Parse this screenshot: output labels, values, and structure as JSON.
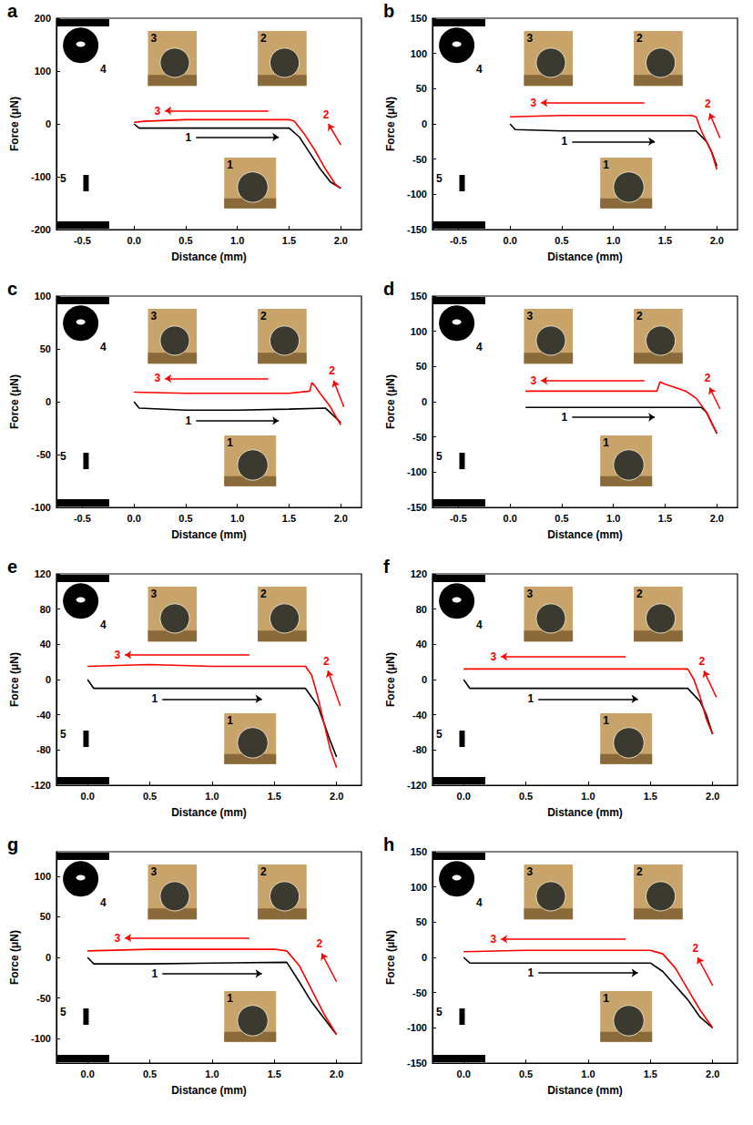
{
  "chart_data": [
    {
      "panel": "a",
      "type": "line",
      "x_label": "Distance (mm)",
      "y_label": "Force (μN)",
      "grid": false,
      "xlim": [
        -0.75,
        2.2
      ],
      "xticks": [
        -0.5,
        {
          "value": 0,
          "label": "0.0"
        },
        0.5,
        {
          "value": 1,
          "label": "1.0"
        },
        1.5,
        {
          "value": 2,
          "label": "2.0"
        }
      ],
      "ylim": [
        -200,
        200
      ],
      "yticks": [
        -200,
        -100,
        0,
        100,
        200
      ],
      "series": [
        {
          "color": "#000000",
          "x": [
            0,
            0.05,
            0.5,
            1.0,
            1.5,
            1.6,
            1.7,
            1.8,
            1.9,
            2.0
          ],
          "values": [
            0,
            -8,
            -8,
            -8,
            -8,
            -25,
            -55,
            -85,
            -110,
            -122
          ]
        },
        {
          "color": "#ff0000",
          "x": [
            2.0,
            1.95,
            1.85,
            1.75,
            1.65,
            1.55,
            1.5,
            1.0,
            0.5,
            0.1,
            0
          ],
          "values": [
            -122,
            -115,
            -85,
            -50,
            -20,
            5,
            8,
            8,
            8,
            5,
            3
          ]
        }
      ],
      "annotations": [
        {
          "text": "1",
          "color": "#000000",
          "from": [
            0.6,
            -25
          ],
          "to": [
            1.4,
            -25
          ]
        },
        {
          "text": "2",
          "color": "#ff0000",
          "from": [
            2.0,
            -40
          ],
          "to": [
            1.88,
            0
          ]
        },
        {
          "text": "3",
          "color": "#ff0000",
          "from": [
            1.3,
            25
          ],
          "to": [
            0.3,
            25
          ]
        }
      ],
      "insets": [
        "1",
        "2",
        "3",
        "4",
        "5"
      ]
    },
    {
      "panel": "b",
      "type": "line",
      "x_label": "Distance (mm)",
      "y_label": "Force (μN)",
      "grid": false,
      "xlim": [
        -0.75,
        2.2
      ],
      "xticks": [
        -0.5,
        {
          "value": 0,
          "label": "0.0"
        },
        0.5,
        {
          "value": 1,
          "label": "1.0"
        },
        1.5,
        {
          "value": 2,
          "label": "2.0"
        }
      ],
      "ylim": [
        -150,
        150
      ],
      "yticks": [
        -150,
        -100,
        -50,
        0,
        50,
        100,
        150
      ],
      "series": [
        {
          "color": "#000000",
          "x": [
            0,
            0.05,
            0.5,
            1.0,
            1.5,
            1.8,
            1.9,
            1.95,
            2.0
          ],
          "values": [
            0,
            -8,
            -10,
            -10,
            -10,
            -10,
            -25,
            -40,
            -60
          ]
        },
        {
          "color": "#ff0000",
          "x": [
            2.0,
            1.95,
            1.85,
            1.8,
            1.75,
            1.5,
            1.0,
            0.5,
            0
          ],
          "values": [
            -65,
            -40,
            -10,
            10,
            12,
            12,
            12,
            12,
            10
          ]
        }
      ],
      "annotations": [
        {
          "text": "1",
          "color": "#000000",
          "from": [
            0.6,
            -25
          ],
          "to": [
            1.4,
            -25
          ]
        },
        {
          "text": "2",
          "color": "#ff0000",
          "from": [
            2.03,
            -20
          ],
          "to": [
            1.93,
            15
          ]
        },
        {
          "text": "3",
          "color": "#ff0000",
          "from": [
            1.3,
            30
          ],
          "to": [
            0.3,
            30
          ]
        }
      ],
      "insets": [
        "1",
        "2",
        "3",
        "4",
        "5"
      ]
    },
    {
      "panel": "c",
      "type": "line",
      "x_label": "Distance (mm)",
      "y_label": "Force (μN)",
      "grid": false,
      "xlim": [
        -0.75,
        2.2
      ],
      "xticks": [
        -0.5,
        {
          "value": 0,
          "label": "0.0"
        },
        0.5,
        {
          "value": 1,
          "label": "1.0"
        },
        1.5,
        {
          "value": 2,
          "label": "2.0"
        }
      ],
      "ylim": [
        -100,
        100
      ],
      "yticks": [
        -100,
        -50,
        0,
        50,
        100
      ],
      "series": [
        {
          "color": "#000000",
          "x": [
            0,
            0.05,
            0.5,
            1.0,
            1.5,
            1.85,
            1.95,
            2.0
          ],
          "values": [
            0,
            -6,
            -8,
            -8,
            -7,
            -6,
            -15,
            -20
          ]
        },
        {
          "color": "#ff0000",
          "x": [
            2.0,
            1.9,
            1.8,
            1.75,
            1.72,
            1.7,
            1.5,
            1.0,
            0.5,
            0
          ],
          "values": [
            -22,
            -5,
            8,
            15,
            18,
            10,
            8,
            8,
            8,
            9
          ]
        }
      ],
      "annotations": [
        {
          "text": "1",
          "color": "#000000",
          "from": [
            0.6,
            -18
          ],
          "to": [
            1.4,
            -18
          ]
        },
        {
          "text": "2",
          "color": "#ff0000",
          "from": [
            2.03,
            -5
          ],
          "to": [
            1.93,
            20
          ]
        },
        {
          "text": "3",
          "color": "#ff0000",
          "from": [
            1.3,
            22
          ],
          "to": [
            0.3,
            22
          ]
        }
      ],
      "insets": [
        "1",
        "2",
        "3",
        "4",
        "5"
      ]
    },
    {
      "panel": "d",
      "type": "line",
      "x_label": "Distance (mm)",
      "y_label": "Force (μN)",
      "grid": false,
      "xlim": [
        -0.75,
        2.2
      ],
      "xticks": [
        -0.5,
        {
          "value": 0,
          "label": "0.0"
        },
        0.5,
        {
          "value": 1,
          "label": "1.0"
        },
        1.5,
        {
          "value": 2,
          "label": "2.0"
        }
      ],
      "ylim": [
        -150,
        150
      ],
      "yticks": [
        -150,
        -100,
        -50,
        0,
        50,
        100,
        150
      ],
      "series": [
        {
          "color": "#000000",
          "x": [
            0.15,
            0.5,
            1.0,
            1.5,
            1.85,
            1.9,
            2.0
          ],
          "values": [
            -8,
            -8,
            -8,
            -8,
            -8,
            -15,
            -45
          ]
        },
        {
          "color": "#ff0000",
          "x": [
            2.0,
            1.95,
            1.9,
            1.8,
            1.7,
            1.6,
            1.5,
            1.45,
            1.42,
            1.0,
            0.5,
            0.15
          ],
          "values": [
            -45,
            -30,
            -15,
            5,
            15,
            20,
            25,
            28,
            15,
            15,
            15,
            15
          ]
        }
      ],
      "annotations": [
        {
          "text": "1",
          "color": "#000000",
          "from": [
            0.6,
            -22
          ],
          "to": [
            1.4,
            -22
          ]
        },
        {
          "text": "2",
          "color": "#ff0000",
          "from": [
            2.03,
            -10
          ],
          "to": [
            1.93,
            20
          ]
        },
        {
          "text": "3",
          "color": "#ff0000",
          "from": [
            1.3,
            30
          ],
          "to": [
            0.3,
            30
          ]
        }
      ],
      "insets": [
        "1",
        "2",
        "3",
        "4",
        "5"
      ]
    },
    {
      "panel": "e",
      "type": "line",
      "x_label": "Distance (mm)",
      "y_label": "Force (μN)",
      "grid": false,
      "xlim": [
        -0.25,
        2.2
      ],
      "xticks": [
        {
          "value": 0,
          "label": "0.0"
        },
        0.5,
        {
          "value": 1,
          "label": "1.0"
        },
        1.5,
        {
          "value": 2,
          "label": "2.0"
        }
      ],
      "ylim": [
        -120,
        120
      ],
      "yticks": [
        -120,
        -80,
        -40,
        0,
        40,
        80,
        120
      ],
      "series": [
        {
          "color": "#000000",
          "x": [
            0,
            0.05,
            0.5,
            1.0,
            1.5,
            1.75,
            1.85,
            1.95,
            2.0
          ],
          "values": [
            0,
            -10,
            -10,
            -10,
            -10,
            -10,
            -30,
            -70,
            -88
          ]
        },
        {
          "color": "#ff0000",
          "x": [
            2.0,
            1.95,
            1.9,
            1.85,
            1.8,
            1.75,
            1.5,
            1.0,
            0.5,
            0
          ],
          "values": [
            -100,
            -80,
            -50,
            -20,
            5,
            15,
            15,
            15,
            17,
            15
          ]
        }
      ],
      "annotations": [
        {
          "text": "1",
          "color": "#000000",
          "from": [
            0.6,
            -22
          ],
          "to": [
            1.4,
            -22
          ]
        },
        {
          "text": "2",
          "color": "#ff0000",
          "from": [
            2.03,
            -30
          ],
          "to": [
            1.93,
            10
          ]
        },
        {
          "text": "3",
          "color": "#ff0000",
          "from": [
            1.3,
            28
          ],
          "to": [
            0.3,
            28
          ]
        }
      ],
      "insets": [
        "1",
        "2",
        "3",
        "4",
        "5"
      ]
    },
    {
      "panel": "f",
      "type": "line",
      "x_label": "Distance (mm)",
      "y_label": "Force (μN)",
      "grid": false,
      "xlim": [
        -0.25,
        2.2
      ],
      "xticks": [
        {
          "value": 0,
          "label": "0.0"
        },
        0.5,
        {
          "value": 1,
          "label": "1.0"
        },
        1.5,
        {
          "value": 2,
          "label": "2.0"
        }
      ],
      "ylim": [
        -120,
        120
      ],
      "yticks": [
        -120,
        -80,
        -40,
        0,
        40,
        80,
        120
      ],
      "series": [
        {
          "color": "#000000",
          "x": [
            0,
            0.05,
            0.5,
            1.0,
            1.5,
            1.8,
            1.9,
            1.95,
            2.0
          ],
          "values": [
            0,
            -10,
            -10,
            -10,
            -10,
            -10,
            -25,
            -40,
            -62
          ]
        },
        {
          "color": "#ff0000",
          "x": [
            2.0,
            1.95,
            1.9,
            1.85,
            1.8,
            1.5,
            1.0,
            0.5,
            0
          ],
          "values": [
            -62,
            -45,
            -20,
            0,
            12,
            12,
            12,
            12,
            12
          ]
        }
      ],
      "annotations": [
        {
          "text": "1",
          "color": "#000000",
          "from": [
            0.6,
            -22
          ],
          "to": [
            1.4,
            -22
          ]
        },
        {
          "text": "2",
          "color": "#ff0000",
          "from": [
            2.03,
            -20
          ],
          "to": [
            1.93,
            10
          ]
        },
        {
          "text": "3",
          "color": "#ff0000",
          "from": [
            1.3,
            26
          ],
          "to": [
            0.3,
            26
          ]
        }
      ],
      "insets": [
        "1",
        "2",
        "3",
        "4",
        "5"
      ]
    },
    {
      "panel": "g",
      "type": "line",
      "x_label": "Distance (mm)",
      "y_label": "Force (μN)",
      "grid": false,
      "xlim": [
        -0.25,
        2.2
      ],
      "xticks": [
        {
          "value": 0,
          "label": "0.0"
        },
        0.5,
        {
          "value": 1,
          "label": "1.0"
        },
        1.5,
        {
          "value": 2,
          "label": "2.0"
        }
      ],
      "ylim": [
        -130,
        130
      ],
      "yticks": [
        -100,
        -50,
        0,
        50,
        100
      ],
      "series": [
        {
          "color": "#000000",
          "x": [
            0,
            0.05,
            0.5,
            1.0,
            1.6,
            1.7,
            1.8,
            1.9,
            2.0
          ],
          "values": [
            0,
            -8,
            -8,
            -7,
            -6,
            -30,
            -55,
            -75,
            -95
          ]
        },
        {
          "color": "#ff0000",
          "x": [
            2.0,
            1.9,
            1.8,
            1.7,
            1.6,
            1.5,
            1.0,
            0.5,
            0
          ],
          "values": [
            -95,
            -70,
            -40,
            -10,
            8,
            10,
            10,
            10,
            8
          ]
        }
      ],
      "annotations": [
        {
          "text": "1",
          "color": "#000000",
          "from": [
            0.6,
            -20
          ],
          "to": [
            1.4,
            -20
          ]
        },
        {
          "text": "2",
          "color": "#ff0000",
          "from": [
            2.0,
            -30
          ],
          "to": [
            1.88,
            5
          ]
        },
        {
          "text": "3",
          "color": "#ff0000",
          "from": [
            1.3,
            24
          ],
          "to": [
            0.3,
            24
          ]
        }
      ],
      "insets": [
        "1",
        "2",
        "3",
        "4",
        "5"
      ]
    },
    {
      "panel": "h",
      "type": "line",
      "x_label": "Distance (mm)",
      "y_label": "Force (μN)",
      "grid": false,
      "xlim": [
        -0.25,
        2.2
      ],
      "xticks": [
        {
          "value": 0,
          "label": "0.0"
        },
        0.5,
        {
          "value": 1,
          "label": "1.0"
        },
        1.5,
        {
          "value": 2,
          "label": "2.0"
        }
      ],
      "ylim": [
        -150,
        150
      ],
      "yticks": [
        -150,
        -100,
        -50,
        0,
        50,
        100,
        150
      ],
      "series": [
        {
          "color": "#000000",
          "x": [
            0,
            0.05,
            0.5,
            1.0,
            1.5,
            1.6,
            1.7,
            1.8,
            1.9,
            2.0
          ],
          "values": [
            0,
            -8,
            -8,
            -8,
            -8,
            -20,
            -40,
            -60,
            -85,
            -100
          ]
        },
        {
          "color": "#ff0000",
          "x": [
            2.0,
            1.9,
            1.8,
            1.7,
            1.6,
            1.5,
            1.0,
            0.5,
            0
          ],
          "values": [
            -100,
            -75,
            -45,
            -15,
            5,
            10,
            10,
            10,
            8
          ]
        }
      ],
      "annotations": [
        {
          "text": "1",
          "color": "#000000",
          "from": [
            0.6,
            -22
          ],
          "to": [
            1.4,
            -22
          ]
        },
        {
          "text": "2",
          "color": "#ff0000",
          "from": [
            2.0,
            -40
          ],
          "to": [
            1.88,
            0
          ]
        },
        {
          "text": "3",
          "color": "#ff0000",
          "from": [
            1.3,
            26
          ],
          "to": [
            0.3,
            26
          ]
        }
      ],
      "insets": [
        "1",
        "2",
        "3",
        "4",
        "5"
      ]
    }
  ]
}
